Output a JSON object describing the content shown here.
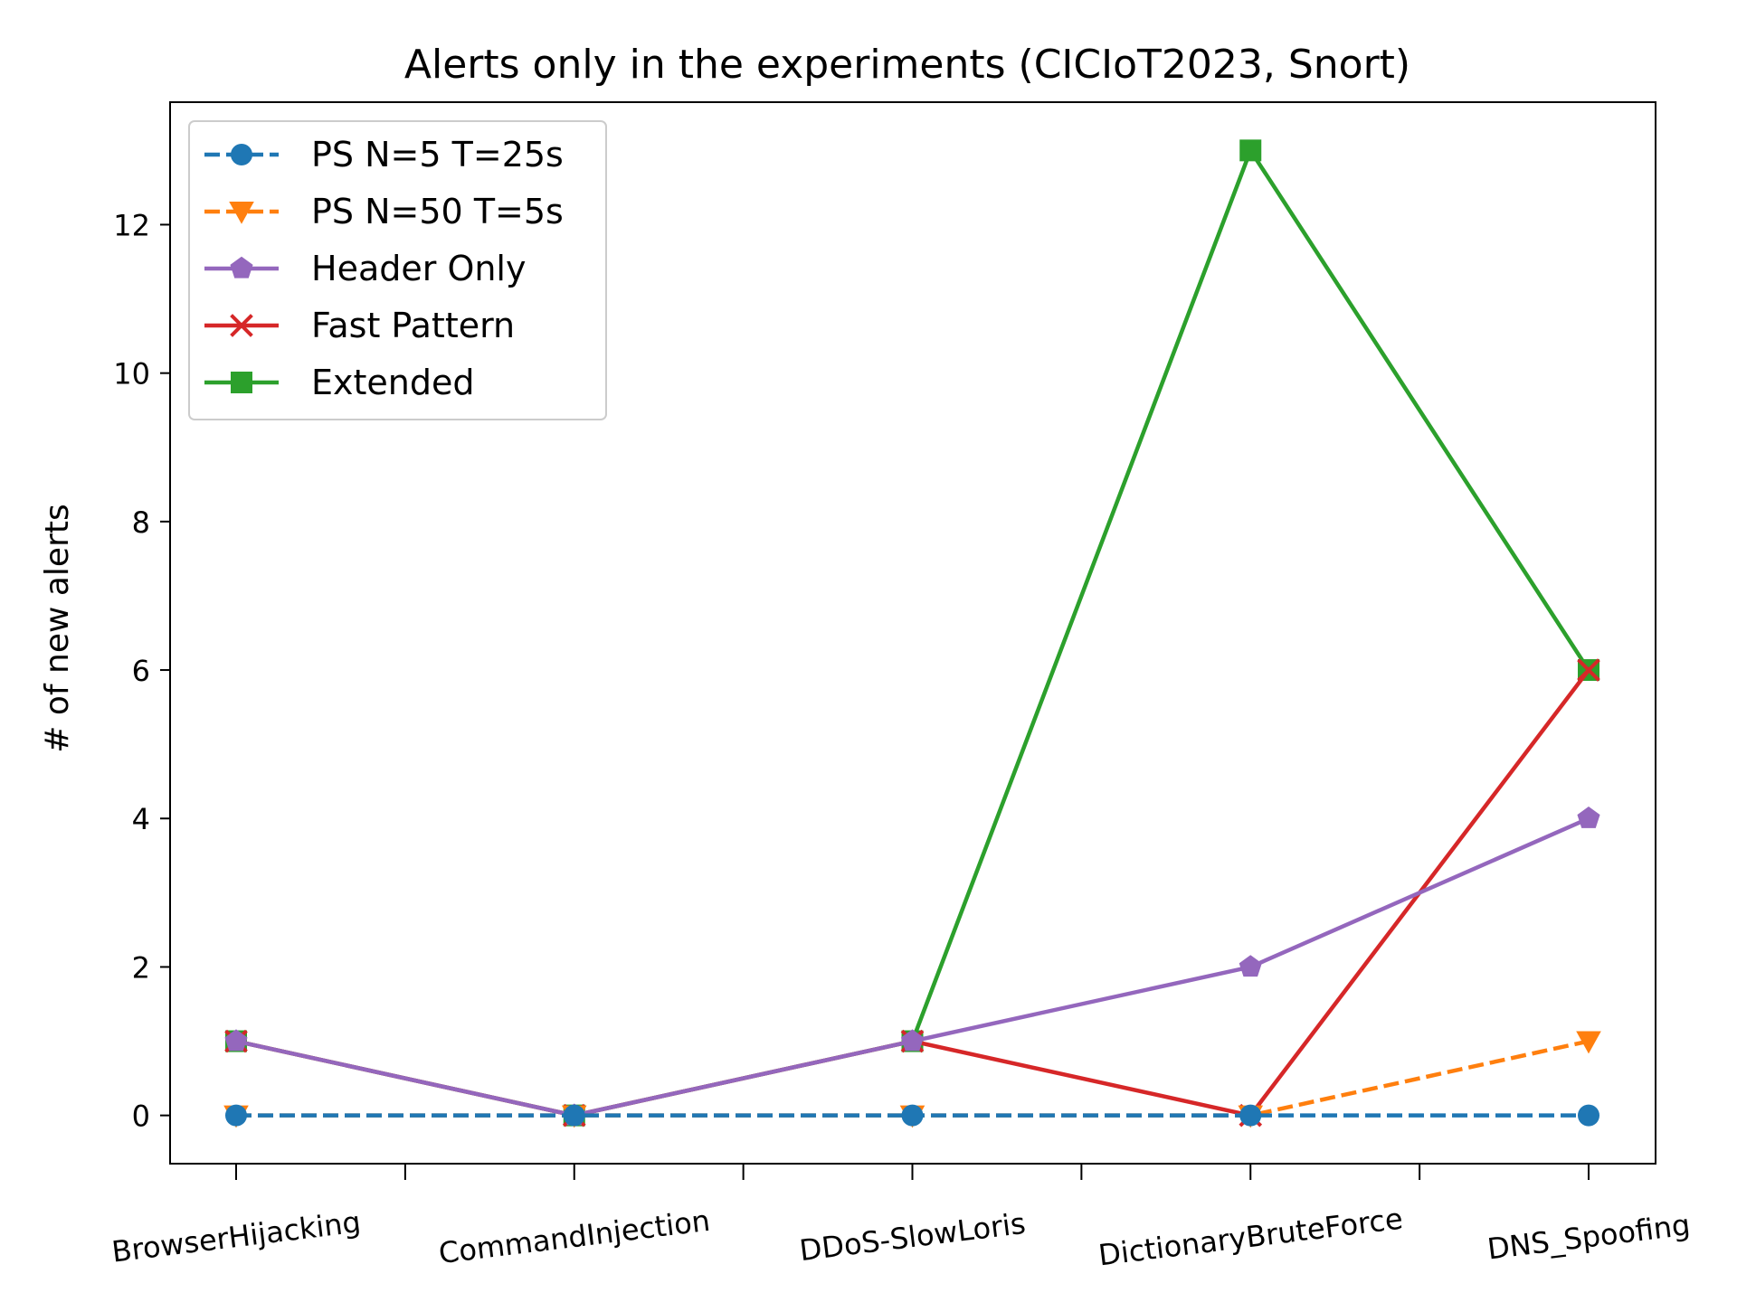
{
  "chart_data": {
    "type": "line",
    "title": "Alerts only in the experiments (CICIoT2023, Snort)",
    "xlabel": "",
    "ylabel": "# of new alerts",
    "categories": [
      "BrowserHijacking",
      "CommandInjection",
      "DDoS-SlowLoris",
      "DictionaryBruteForce",
      "DNS_Spoofing"
    ],
    "ylim": [
      -0.65,
      13.65
    ],
    "yticks": [
      0,
      2,
      4,
      6,
      8,
      10,
      12
    ],
    "grid": false,
    "legend_position": "upper-left",
    "series": [
      {
        "name": "PS N=5 T=25s",
        "values": [
          0,
          0,
          0,
          0,
          0
        ],
        "color": "#1f77b4",
        "linestyle": "dashed",
        "marker": "circle"
      },
      {
        "name": "PS N=50 T=5s",
        "values": [
          0,
          0,
          0,
          0,
          1
        ],
        "color": "#ff7f0e",
        "linestyle": "dashed",
        "marker": "triangle-down"
      },
      {
        "name": "Header Only",
        "values": [
          1,
          0,
          1,
          2,
          4
        ],
        "color": "#9467bd",
        "linestyle": "solid",
        "marker": "pentagon"
      },
      {
        "name": "Fast Pattern",
        "values": [
          1,
          0,
          1,
          0,
          6
        ],
        "color": "#d62728",
        "linestyle": "solid",
        "marker": "x"
      },
      {
        "name": "Extended",
        "values": [
          1,
          0,
          1,
          13,
          6
        ],
        "color": "#2ca02c",
        "linestyle": "solid",
        "marker": "square"
      }
    ],
    "draw_order": [
      "Extended",
      "Fast Pattern",
      "Header Only",
      "PS N=50 T=5s",
      "PS N=5 T=25s"
    ],
    "legend_order": [
      "PS N=5 T=25s",
      "PS N=50 T=5s",
      "Header Only",
      "Fast Pattern",
      "Extended"
    ]
  }
}
